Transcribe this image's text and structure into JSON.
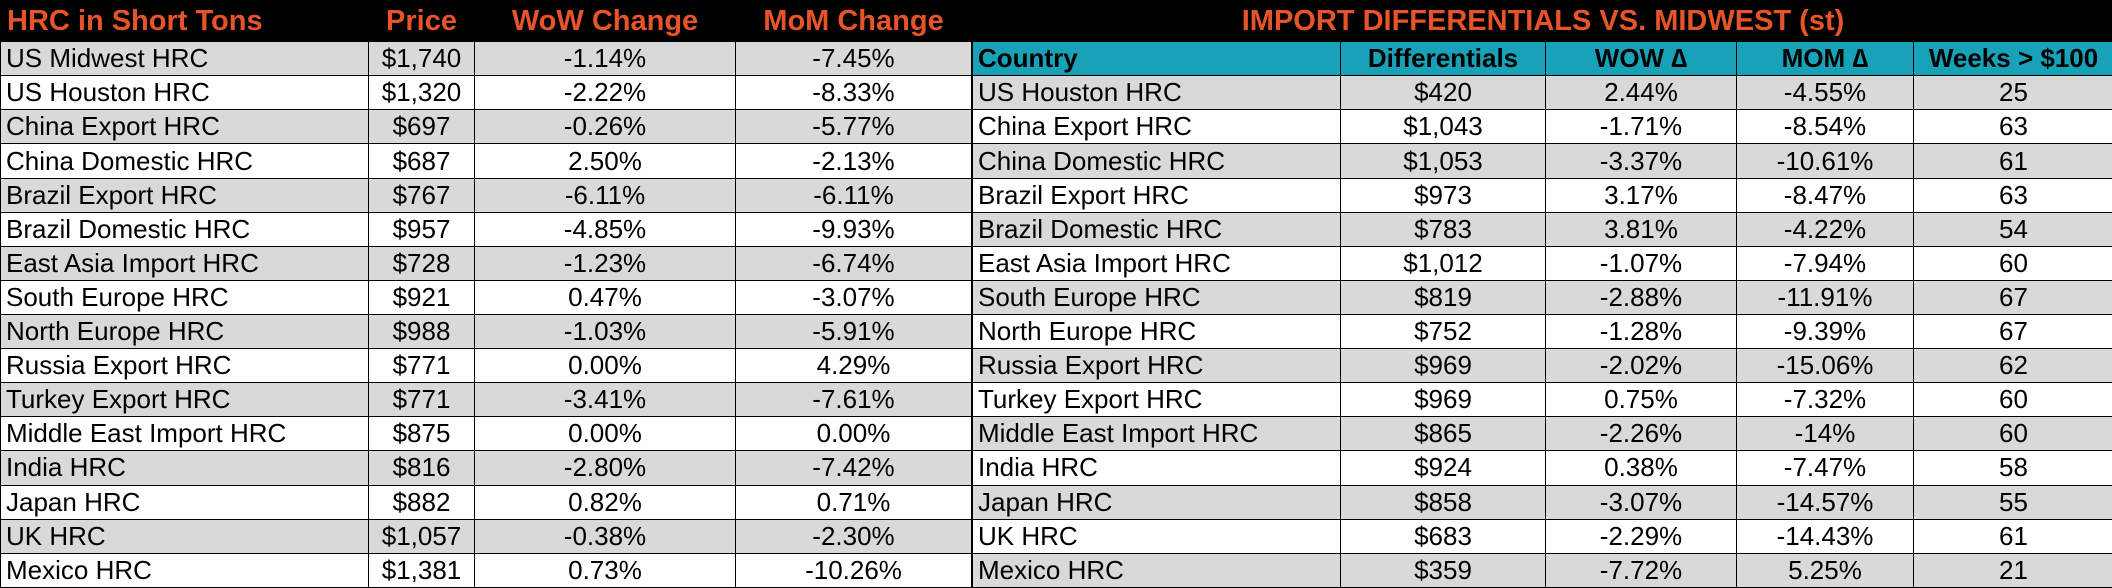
{
  "theme": {
    "header_bg": "#000000",
    "header_text": "#e8542a",
    "subheader_bg": "#17a2b8",
    "stripe_bg": "#d9d9d9",
    "plain_bg": "#ffffff"
  },
  "left": {
    "headers": [
      "HRC in Short Tons",
      "Price",
      "WoW Change",
      "MoM Change"
    ],
    "rows": [
      [
        "US Midwest HRC",
        "$1,740",
        "-1.14%",
        "-7.45%"
      ],
      [
        "US Houston HRC",
        "$1,320",
        "-2.22%",
        "-8.33%"
      ],
      [
        "China Export HRC",
        "$697",
        "-0.26%",
        "-5.77%"
      ],
      [
        "China Domestic HRC",
        "$687",
        "2.50%",
        "-2.13%"
      ],
      [
        "Brazil Export HRC",
        "$767",
        "-6.11%",
        "-6.11%"
      ],
      [
        "Brazil Domestic HRC",
        "$957",
        "-4.85%",
        "-9.93%"
      ],
      [
        "East Asia Import HRC",
        "$728",
        "-1.23%",
        "-6.74%"
      ],
      [
        "South Europe HRC",
        "$921",
        "0.47%",
        "-3.07%"
      ],
      [
        "North Europe HRC",
        "$988",
        "-1.03%",
        "-5.91%"
      ],
      [
        "Russia Export HRC",
        "$771",
        "0.00%",
        "4.29%"
      ],
      [
        "Turkey Export HRC",
        "$771",
        "-3.41%",
        "-7.61%"
      ],
      [
        "Middle East Import HRC",
        "$875",
        "0.00%",
        "0.00%"
      ],
      [
        "India HRC",
        "$816",
        "-2.80%",
        "-7.42%"
      ],
      [
        "Japan HRC",
        "$882",
        "0.82%",
        "0.71%"
      ],
      [
        "UK HRC",
        "$1,057",
        "-0.38%",
        "-2.30%"
      ],
      [
        "Mexico HRC",
        "$1,381",
        "0.73%",
        "-10.26%"
      ]
    ]
  },
  "right": {
    "title": "IMPORT DIFFERENTIALS VS. MIDWEST (st)",
    "headers": [
      "Country",
      "Differentials",
      "WOW ∆",
      "MOM ∆",
      "Weeks > $100"
    ],
    "rows": [
      [
        "US Houston HRC",
        "$420",
        "2.44%",
        "-4.55%",
        "25"
      ],
      [
        "China Export HRC",
        "$1,043",
        "-1.71%",
        "-8.54%",
        "63"
      ],
      [
        "China Domestic HRC",
        "$1,053",
        "-3.37%",
        "-10.61%",
        "61"
      ],
      [
        "Brazil Export HRC",
        "$973",
        "3.17%",
        "-8.47%",
        "63"
      ],
      [
        "Brazil Domestic HRC",
        "$783",
        "3.81%",
        "-4.22%",
        "54"
      ],
      [
        "East Asia Import HRC",
        "$1,012",
        "-1.07%",
        "-7.94%",
        "60"
      ],
      [
        "South Europe HRC",
        "$819",
        "-2.88%",
        "-11.91%",
        "67"
      ],
      [
        "North Europe HRC",
        "$752",
        "-1.28%",
        "-9.39%",
        "67"
      ],
      [
        "Russia Export HRC",
        "$969",
        "-2.02%",
        "-15.06%",
        "62"
      ],
      [
        "Turkey Export HRC",
        "$969",
        "0.75%",
        "-7.32%",
        "60"
      ],
      [
        "Middle East Import HRC",
        "$865",
        "-2.26%",
        "-14%",
        "60"
      ],
      [
        "India HRC",
        "$924",
        "0.38%",
        "-7.47%",
        "58"
      ],
      [
        "Japan HRC",
        "$858",
        "-3.07%",
        "-14.57%",
        "55"
      ],
      [
        "UK HRC",
        "$683",
        "-2.29%",
        "-14.43%",
        "61"
      ],
      [
        "Mexico HRC",
        "$359",
        "-7.72%",
        "5.25%",
        "21"
      ]
    ]
  }
}
